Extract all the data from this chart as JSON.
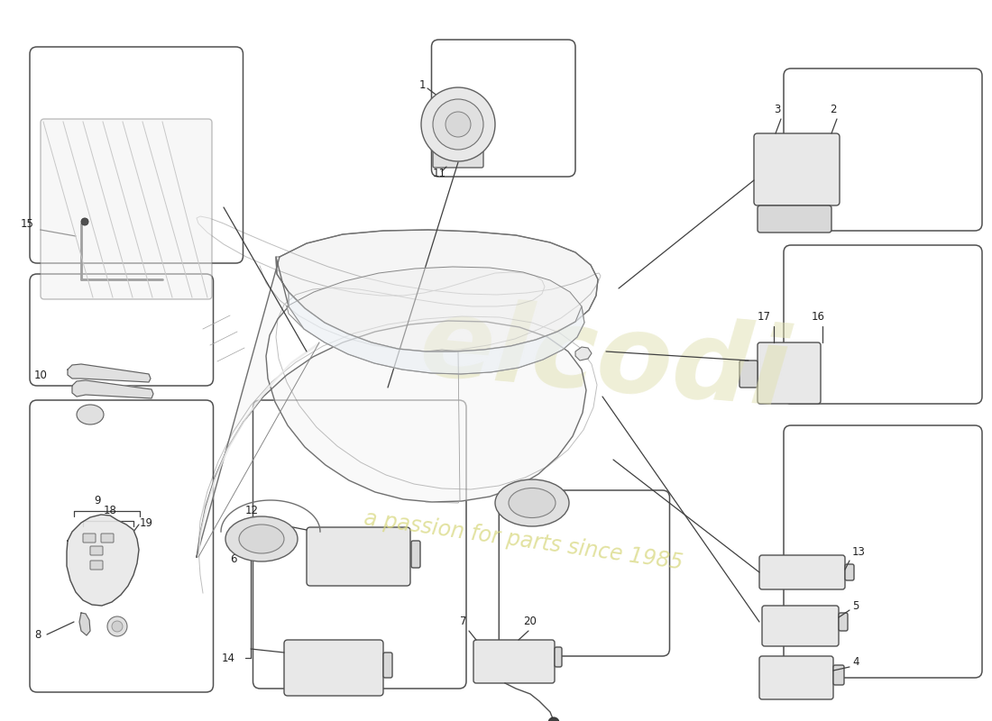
{
  "background_color": "#ffffff",
  "fig_width": 11.0,
  "fig_height": 8.0,
  "line_color": "#404040",
  "box_color": "#505050",
  "part_fill": "#e8e8e8",
  "part_edge": "#505050",
  "watermark1": "elcodi",
  "watermark2": "a passion for parts since 1985",
  "wm_color1": "#e0e0b0",
  "wm_color2": "#d8d880",
  "label_fontsize": 8.5,
  "boxes": {
    "keys": [
      0.03,
      0.555,
      0.185,
      0.405
    ],
    "fob": [
      0.03,
      0.38,
      0.185,
      0.155
    ],
    "ecm": [
      0.255,
      0.555,
      0.215,
      0.4
    ],
    "antenna": [
      0.503,
      0.68,
      0.172,
      0.23
    ],
    "sensor1": [
      0.79,
      0.59,
      0.2,
      0.35
    ],
    "sensor2": [
      0.79,
      0.34,
      0.2,
      0.22
    ],
    "sensor3": [
      0.79,
      0.095,
      0.2,
      0.225
    ],
    "alarm": [
      0.03,
      0.065,
      0.215,
      0.3
    ],
    "horn": [
      0.435,
      0.055,
      0.145,
      0.19
    ]
  }
}
